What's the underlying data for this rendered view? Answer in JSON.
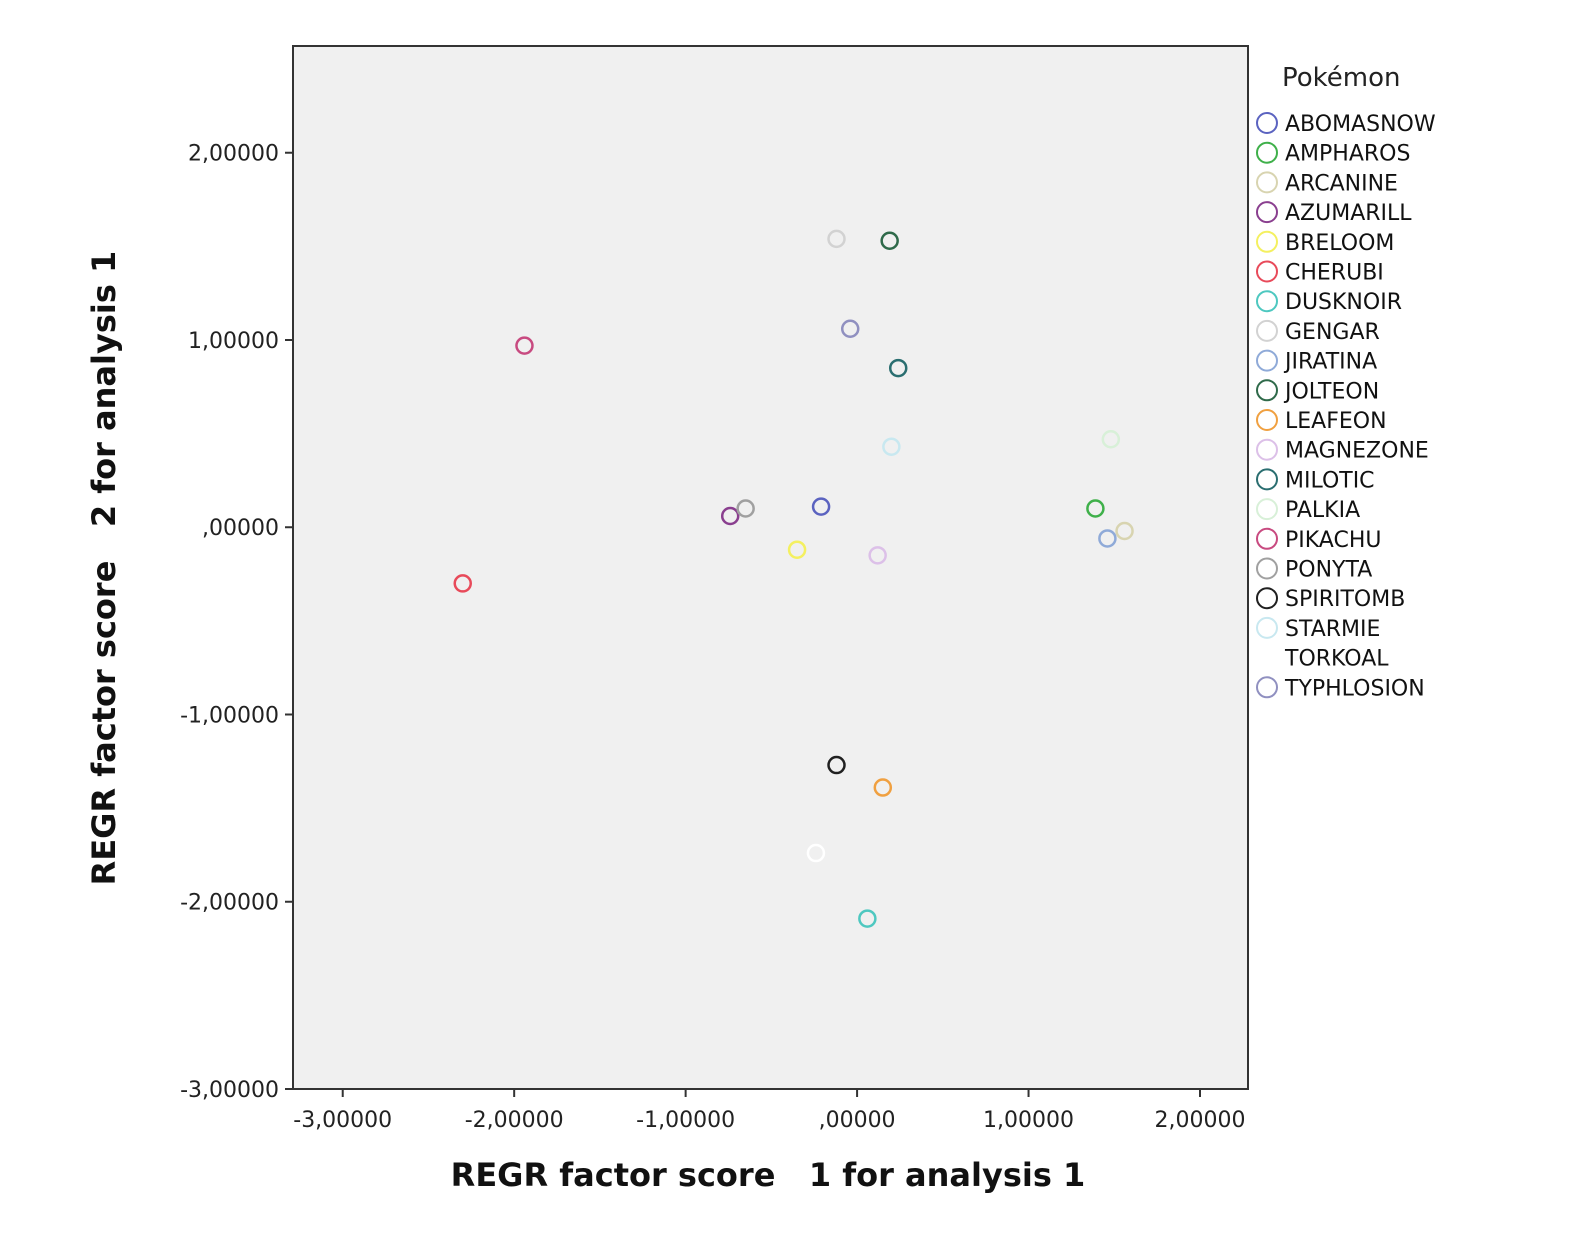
{
  "chart_data": {
    "type": "scatter",
    "title": "",
    "xlabel": "REGR factor score   1 for analysis 1",
    "ylabel": "REGR factor score   2 for analysis 1",
    "xlim": [
      -3.29,
      2.28
    ],
    "ylim": [
      -3.0,
      2.57
    ],
    "xticks": [
      -3,
      -2,
      -1,
      0,
      1,
      2
    ],
    "xtick_labels": [
      "-3,00000",
      "-2,00000",
      "-1,00000",
      ",00000",
      "1,00000",
      "2,00000"
    ],
    "yticks": [
      -3,
      -2,
      -1,
      0,
      1,
      2
    ],
    "ytick_labels": [
      "-3,00000",
      "-2,00000",
      "-1,00000",
      ",00000",
      "1,00000",
      "2,00000"
    ],
    "grid": false,
    "plot_background": "#f0f0f0",
    "legend": {
      "title": "Pokémon",
      "placement": "right"
    },
    "series": [
      {
        "name": "ABOMASNOW",
        "color": "#5b63c0",
        "x": -0.21,
        "y": 0.11
      },
      {
        "name": "AMPHAROS",
        "color": "#3fb04a",
        "x": 1.39,
        "y": 0.1
      },
      {
        "name": "ARCANINE",
        "color": "#d8d4b0",
        "x": 1.56,
        "y": -0.02
      },
      {
        "name": "AZUMARILL",
        "color": "#8a3f8f",
        "x": -0.74,
        "y": 0.06
      },
      {
        "name": "BRELOOM",
        "color": "#f4f060",
        "x": -0.35,
        "y": -0.12
      },
      {
        "name": "CHERUBI",
        "color": "#e84a5a",
        "x": -2.3,
        "y": -0.3
      },
      {
        "name": "DUSKNOIR",
        "color": "#4ec8c0",
        "x": 0.06,
        "y": -2.09
      },
      {
        "name": "GENGAR",
        "color": "#d2d2d2",
        "x": -0.12,
        "y": 1.54
      },
      {
        "name": "JIRATINA",
        "color": "#8faad8",
        "x": 1.46,
        "y": -0.06
      },
      {
        "name": "JOLTEON",
        "color": "#2f6a4a",
        "x": 0.19,
        "y": 1.53
      },
      {
        "name": "LEAFEON",
        "color": "#f0a040",
        "x": 0.15,
        "y": -1.39
      },
      {
        "name": "MAGNEZONE",
        "color": "#dcc0e8",
        "x": 0.12,
        "y": -0.15
      },
      {
        "name": "MILOTIC",
        "color": "#2a6e70",
        "x": 0.24,
        "y": 0.85
      },
      {
        "name": "PALKIA",
        "color": "#d8f0d8",
        "x": 1.48,
        "y": 0.47
      },
      {
        "name": "PIKACHU",
        "color": "#c84a80",
        "x": -1.94,
        "y": 0.97
      },
      {
        "name": "PONYTA",
        "color": "#a0a0a0",
        "x": -0.65,
        "y": 0.1
      },
      {
        "name": "SPIRITOMB",
        "color": "#202020",
        "x": -0.12,
        "y": -1.27
      },
      {
        "name": "STARMIE",
        "color": "#c8e8f0",
        "x": 0.2,
        "y": 0.43
      },
      {
        "name": "TORKOAL",
        "color": "#ffffff",
        "x": -0.24,
        "y": -1.74
      },
      {
        "name": "TYPHLOSION",
        "color": "#9090c0",
        "x": -0.04,
        "y": 1.06
      }
    ]
  }
}
